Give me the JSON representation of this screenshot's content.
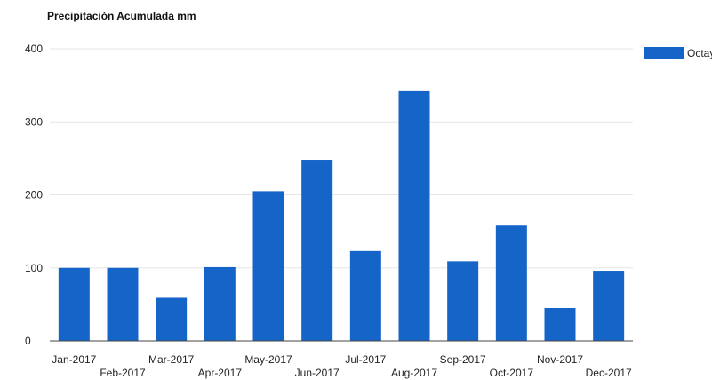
{
  "chart_data": {
    "type": "bar",
    "title": "Precipitación Acumulada mm",
    "xlabel": "",
    "ylabel": "",
    "categories": [
      "Jan-2017",
      "Feb-2017",
      "Mar-2017",
      "Apr-2017",
      "May-2017",
      "Jun-2017",
      "Jul-2017",
      "Aug-2017",
      "Sep-2017",
      "Oct-2017",
      "Nov-2017",
      "Dec-2017"
    ],
    "series": [
      {
        "name": "Octay",
        "values": [
          100,
          100,
          59,
          101,
          205,
          248,
          123,
          343,
          109,
          159,
          45,
          96
        ],
        "color": "#1565c8"
      }
    ],
    "ylim": [
      0,
      400
    ],
    "yticks": [
      0,
      100,
      200,
      300,
      400
    ],
    "grid": true,
    "legend_position": "top-right"
  }
}
